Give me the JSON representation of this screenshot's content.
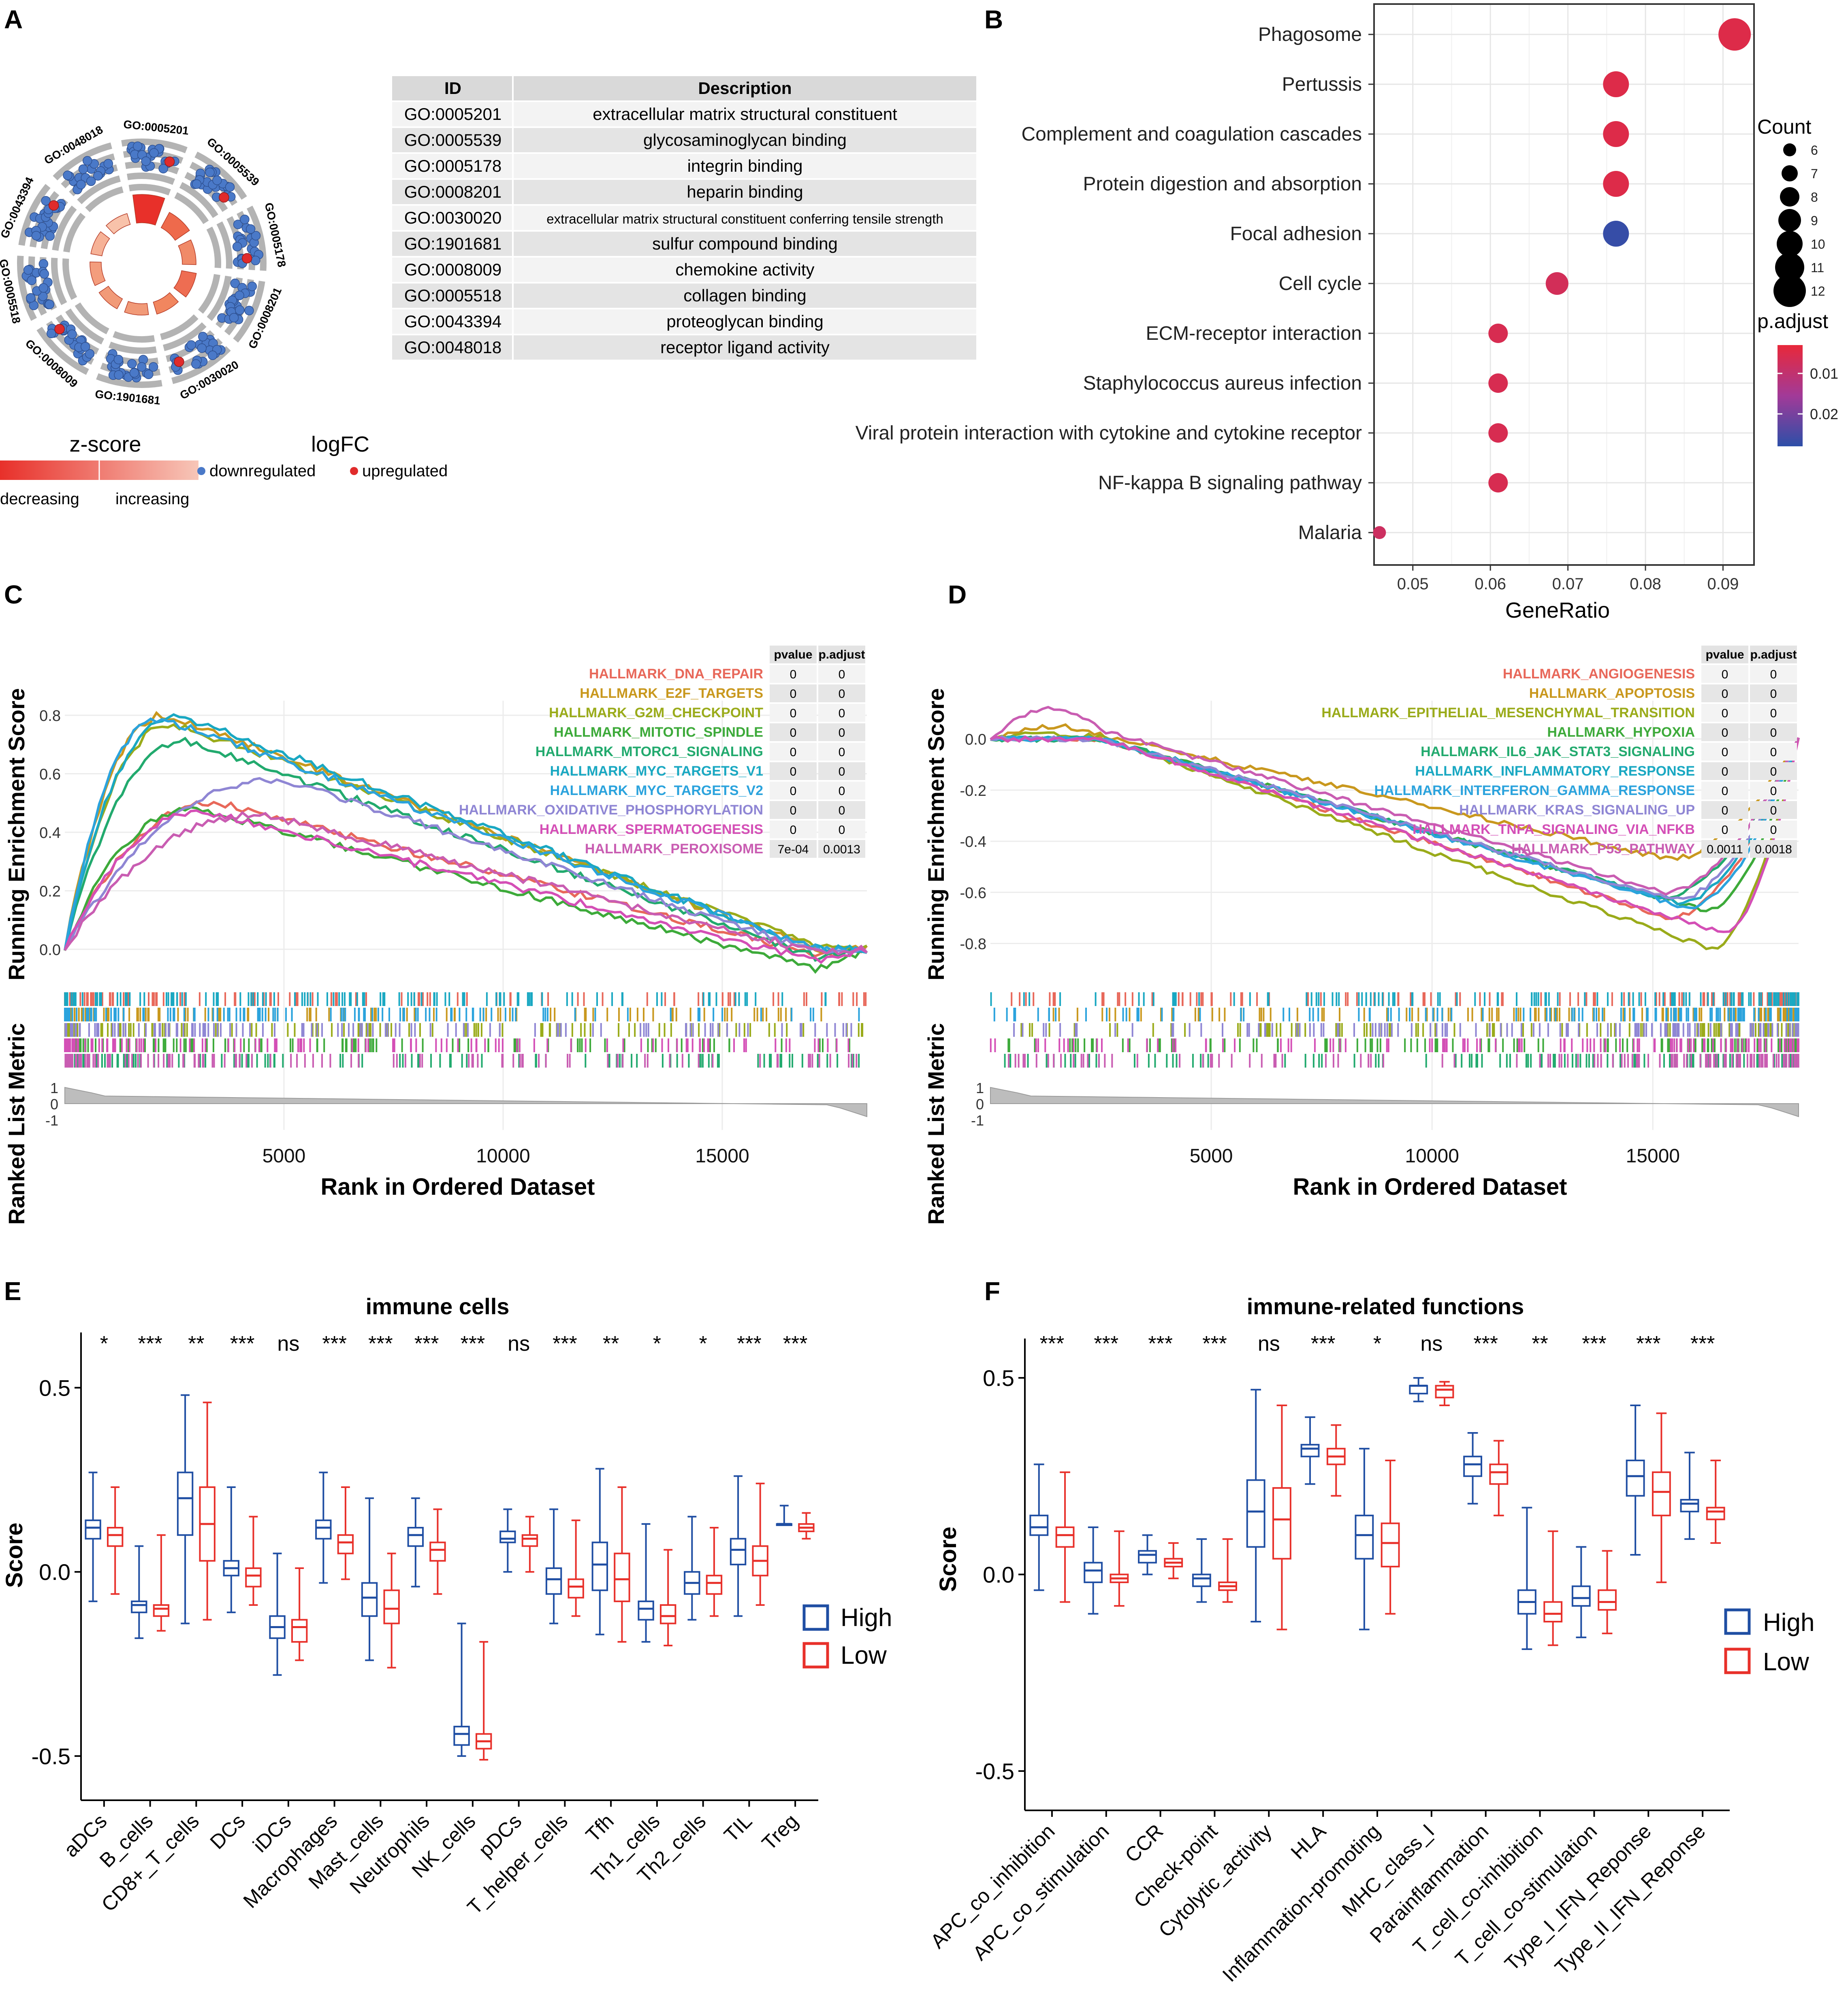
{
  "panels": {
    "a": "A",
    "b": "B",
    "c": "C",
    "d": "D",
    "e": "E",
    "f": "F"
  },
  "colors": {
    "down": "#4a79c8",
    "up": "#e02b2b",
    "high": "#1f4ea3",
    "low": "#e8302a",
    "bar": "#e8553a",
    "ring": "#b3b3b3"
  },
  "chart_data": [
    {
      "id": "A",
      "type": "table",
      "title": "GO circle plot",
      "headers": [
        "ID",
        "Description"
      ],
      "rows": [
        [
          "GO:0005201",
          "extracellular matrix structural constituent"
        ],
        [
          "GO:0005539",
          "glycosaminoglycan binding"
        ],
        [
          "GO:0005178",
          "integrin binding"
        ],
        [
          "GO:0008201",
          "heparin binding"
        ],
        [
          "GO:0030020",
          "extracellular matrix structural constituent conferring tensile strength"
        ],
        [
          "GO:1901681",
          "sulfur compound binding"
        ],
        [
          "GO:0008009",
          "chemokine activity"
        ],
        [
          "GO:0005518",
          "collagen binding"
        ],
        [
          "GO:0043394",
          "proteoglycan binding"
        ],
        [
          "GO:0048018",
          "receptor ligand activity"
        ]
      ],
      "circle_terms": [
        "GO:0005201",
        "GO:0005539",
        "GO:0005178",
        "GO:0008201",
        "GO:0030020",
        "GO:1901681",
        "GO:0008009",
        "GO:0005518",
        "GO:0043394",
        "GO:0048018"
      ],
      "bar_heights": [
        1.0,
        0.55,
        0.4,
        0.45,
        0.35,
        0.3,
        0.3,
        0.3,
        0.3,
        0.3
      ],
      "zscore_legend": {
        "title": "z-score",
        "low": "decreasing",
        "high": "increasing"
      },
      "logfc_legend": {
        "title": "logFC",
        "down": "downregulated",
        "up": "upregulated"
      }
    },
    {
      "id": "B",
      "type": "scatter",
      "xlabel": "GeneRatio",
      "xlim": [
        0.045,
        0.094
      ],
      "xticks": [
        0.05,
        0.06,
        0.07,
        0.08,
        0.09
      ],
      "tick_labels": [
        "0.05",
        "0.06",
        "0.07",
        "0.08",
        "0.09"
      ],
      "terms": [
        "Phagosome",
        "Pertussis",
        "Complement and coagulation cascades",
        "Protein digestion and absorption",
        "Focal adhesion",
        "Cell cycle",
        "ECM-receptor interaction",
        "Staphylococcus aureus infection",
        "Viral protein interaction with cytokine and cytokine receptor",
        "NF-kappa B signaling pathway",
        "Malaria"
      ],
      "gene_ratio": [
        0.0915,
        0.0762,
        0.0762,
        0.0762,
        0.0762,
        0.0686,
        0.061,
        0.061,
        0.061,
        0.061,
        0.0457
      ],
      "count": [
        12,
        10,
        10,
        10,
        10,
        9,
        8,
        8,
        8,
        8,
        6
      ],
      "p_adjust": [
        0.005,
        0.005,
        0.005,
        0.005,
        0.027,
        0.007,
        0.006,
        0.006,
        0.006,
        0.006,
        0.008
      ],
      "count_legend": {
        "title": "Count",
        "values": [
          "6",
          "7",
          "8",
          "9",
          "10",
          "11",
          "12"
        ]
      },
      "color_legend": {
        "title": "p.adjust",
        "ticks": [
          "0.01",
          "0.02"
        ],
        "tick_values": [
          0.01,
          0.02
        ],
        "range": [
          0.003,
          0.028
        ]
      }
    },
    {
      "id": "C",
      "type": "line",
      "ylabel_top": "Running Enrichment Score",
      "ylabel_bottom": "Ranked List Metric",
      "xlabel": "Rank in Ordered Dataset",
      "xlim": [
        0,
        18300
      ],
      "ylim": [
        -0.05,
        0.85
      ],
      "xticks": [
        "5000",
        "10000",
        "15000"
      ],
      "xtick_values": [
        5000,
        10000,
        15000
      ],
      "yticks": [
        "0.0",
        "0.2",
        "0.4",
        "0.6",
        "0.8"
      ],
      "ytick_values": [
        0,
        0.2,
        0.4,
        0.6,
        0.8
      ],
      "metric_ticks": [
        "1",
        "0",
        "-1"
      ],
      "table_headers": [
        "pvalue",
        "p.adjust"
      ],
      "series": [
        {
          "name": "HALLMARK_DNA_REPAIR",
          "color": "#e8685a",
          "pvalue": "0",
          "padjust": "0",
          "peak_rank": 3500,
          "peak": 0.5,
          "end_dip": -0.02
        },
        {
          "name": "HALLMARK_E2F_TARGETS",
          "color": "#c9981e",
          "pvalue": "0",
          "padjust": "0",
          "peak_rank": 2300,
          "peak": 0.8,
          "end_dip": 0.0
        },
        {
          "name": "HALLMARK_G2M_CHECKPOINT",
          "color": "#9aab1a",
          "pvalue": "0",
          "padjust": "0",
          "peak_rank": 2500,
          "peak": 0.77,
          "end_dip": 0.01
        },
        {
          "name": "HALLMARK_MITOTIC_SPINDLE",
          "color": "#3daa3a",
          "pvalue": "0",
          "padjust": "0",
          "peak_rank": 3000,
          "peak": 0.48,
          "end_dip": -0.07
        },
        {
          "name": "HALLMARK_MTORC1_SIGNALING",
          "color": "#22aa6e",
          "pvalue": "0",
          "padjust": "0",
          "peak_rank": 2800,
          "peak": 0.71,
          "end_dip": -0.03
        },
        {
          "name": "HALLMARK_MYC_TARGETS_V1",
          "color": "#1aa8c2",
          "pvalue": "0",
          "padjust": "0",
          "peak_rank": 2600,
          "peak": 0.8,
          "end_dip": 0.0
        },
        {
          "name": "HALLMARK_MYC_TARGETS_V2",
          "color": "#2ba3dd",
          "pvalue": "0",
          "padjust": "0",
          "peak_rank": 2200,
          "peak": 0.79,
          "end_dip": 0.0
        },
        {
          "name": "HALLMARK_OXIDATIVE_PHOSPHORYLATION",
          "color": "#8f86d4",
          "pvalue": "0",
          "padjust": "0",
          "peak_rank": 5000,
          "peak": 0.58,
          "end_dip": -0.01
        },
        {
          "name": "HALLMARK_SPERMATOGENESIS",
          "color": "#d44fb6",
          "pvalue": "0",
          "padjust": "0",
          "peak_rank": 3200,
          "peak": 0.47,
          "end_dip": -0.04
        },
        {
          "name": "HALLMARK_PEROXISOME",
          "color": "#c95db2",
          "pvalue": "7e-04",
          "padjust": "0.0013",
          "peak_rank": 4500,
          "peak": 0.46,
          "end_dip": -0.01
        }
      ]
    },
    {
      "id": "D",
      "type": "line",
      "ylabel_top": "Running Enrichment Score",
      "ylabel_bottom": "Ranked List Metric",
      "xlabel": "Rank in Ordered Dataset",
      "xlim": [
        0,
        18300
      ],
      "ylim": [
        -0.88,
        0.15
      ],
      "xticks": [
        "5000",
        "10000",
        "15000"
      ],
      "xtick_values": [
        5000,
        10000,
        15000
      ],
      "yticks": [
        "0.0",
        "-0.2",
        "-0.4",
        "-0.6",
        "-0.8"
      ],
      "ytick_values": [
        0,
        -0.2,
        -0.4,
        -0.6,
        -0.8
      ],
      "metric_ticks": [
        "1",
        "0",
        "-1"
      ],
      "table_headers": [
        "pvalue",
        "p.adjust"
      ],
      "series": [
        {
          "name": "HALLMARK_ANGIOGENESIS",
          "color": "#e8685a",
          "pvalue": "0",
          "padjust": "0",
          "trough_rank": 15400,
          "trough": -0.7,
          "start_bump": 0.0
        },
        {
          "name": "HALLMARK_APOPTOSIS",
          "color": "#c9981e",
          "pvalue": "0",
          "padjust": "0",
          "trough_rank": 15400,
          "trough": -0.47,
          "start_bump": 0.05
        },
        {
          "name": "HALLMARK_EPITHELIAL_MESENCHYMAL_TRANSITION",
          "color": "#9aab1a",
          "pvalue": "0",
          "padjust": "0",
          "trough_rank": 16300,
          "trough": -0.82,
          "start_bump": 0.02
        },
        {
          "name": "HALLMARK_HYPOXIA",
          "color": "#3daa3a",
          "pvalue": "0",
          "padjust": "0",
          "trough_rank": 16200,
          "trough": -0.67,
          "start_bump": 0.0
        },
        {
          "name": "HALLMARK_IL6_JAK_STAT3_SIGNALING",
          "color": "#22aa6e",
          "pvalue": "0",
          "padjust": "0",
          "trough_rank": 15200,
          "trough": -0.62,
          "start_bump": 0.0
        },
        {
          "name": "HALLMARK_INFLAMMATORY_RESPONSE",
          "color": "#1aa8c2",
          "pvalue": "0",
          "padjust": "0",
          "trough_rank": 15600,
          "trough": -0.64,
          "start_bump": 0.0
        },
        {
          "name": "HALLMARK_INTERFERON_GAMMA_RESPONSE",
          "color": "#2ba3dd",
          "pvalue": "0",
          "padjust": "0",
          "trough_rank": 15800,
          "trough": -0.66,
          "start_bump": 0.0
        },
        {
          "name": "HALLMARK_KRAS_SIGNALING_UP",
          "color": "#8f86d4",
          "pvalue": "0",
          "padjust": "0",
          "trough_rank": 15500,
          "trough": -0.63,
          "start_bump": 0.0
        },
        {
          "name": "HALLMARK_TNFA_SIGNALING_VIA_NFKB",
          "color": "#d44fb6",
          "pvalue": "0",
          "padjust": "0",
          "trough_rank": 16600,
          "trough": -0.76,
          "start_bump": 0.0
        },
        {
          "name": "HALLMARK_P53_PATHWAY",
          "color": "#c95db2",
          "pvalue": "0.0011",
          "padjust": "0.0018",
          "trough_rank": 15300,
          "trough": -0.6,
          "start_bump": 0.12
        }
      ]
    },
    {
      "id": "E",
      "type": "box",
      "title": "immune cells",
      "ylabel": "Score",
      "ylim": [
        -0.62,
        0.65
      ],
      "yticks": [
        "0.5",
        "0.0",
        "-0.5"
      ],
      "ytick_values": [
        0.5,
        0,
        -0.5
      ],
      "legend": [
        "High",
        "Low"
      ],
      "categories": [
        "aDCs",
        "B_cells",
        "CD8+_T_cells",
        "DCs",
        "iDCs",
        "Macrophages",
        "Mast_cells",
        "Neutrophils",
        "NK_cells",
        "pDCs",
        "T_helper_cells",
        "Tfh",
        "Th1_cells",
        "Th2_cells",
        "TIL",
        "Treg"
      ],
      "significance": [
        "*",
        "***",
        "**",
        "***",
        "ns",
        "***",
        "***",
        "***",
        "***",
        "ns",
        "***",
        "**",
        "*",
        "*",
        "***",
        "***"
      ],
      "high": [
        [
          -0.08,
          0.09,
          0.12,
          0.14,
          0.27
        ],
        [
          -0.18,
          -0.11,
          -0.09,
          -0.08,
          0.07
        ],
        [
          -0.14,
          0.1,
          0.2,
          0.27,
          0.48
        ],
        [
          -0.11,
          -0.01,
          0.01,
          0.03,
          0.23
        ],
        [
          -0.28,
          -0.18,
          -0.15,
          -0.12,
          0.05
        ],
        [
          -0.03,
          0.09,
          0.12,
          0.14,
          0.27
        ],
        [
          -0.24,
          -0.12,
          -0.07,
          -0.03,
          0.2
        ],
        [
          -0.04,
          0.07,
          0.1,
          0.12,
          0.2
        ],
        [
          -0.5,
          -0.47,
          -0.44,
          -0.42,
          -0.14
        ],
        [
          0.0,
          0.08,
          0.09,
          0.11,
          0.17
        ],
        [
          -0.14,
          -0.06,
          -0.02,
          0.01,
          0.17
        ],
        [
          -0.17,
          -0.05,
          0.02,
          0.08,
          0.28
        ],
        [
          -0.19,
          -0.13,
          -0.1,
          -0.08,
          0.13
        ],
        [
          -0.13,
          -0.06,
          -0.03,
          0.0,
          0.15
        ],
        [
          -0.12,
          0.02,
          0.06,
          0.09,
          0.26
        ],
        [
          0.13,
          0.13,
          0.13,
          0.13,
          0.18
        ]
      ],
      "low": [
        [
          -0.06,
          0.07,
          0.1,
          0.12,
          0.23
        ],
        [
          -0.16,
          -0.12,
          -0.1,
          -0.09,
          0.1
        ],
        [
          -0.13,
          0.03,
          0.13,
          0.23,
          0.46
        ],
        [
          -0.09,
          -0.04,
          -0.01,
          0.01,
          0.15
        ],
        [
          -0.24,
          -0.19,
          -0.15,
          -0.13,
          0.01
        ],
        [
          -0.02,
          0.05,
          0.08,
          0.1,
          0.23
        ],
        [
          -0.26,
          -0.14,
          -0.1,
          -0.05,
          0.05
        ],
        [
          -0.06,
          0.03,
          0.06,
          0.08,
          0.17
        ],
        [
          -0.51,
          -0.48,
          -0.46,
          -0.44,
          -0.19
        ],
        [
          0.0,
          0.07,
          0.09,
          0.1,
          0.15
        ],
        [
          -0.12,
          -0.07,
          -0.04,
          -0.02,
          0.14
        ],
        [
          -0.19,
          -0.08,
          -0.02,
          0.05,
          0.23
        ],
        [
          -0.2,
          -0.14,
          -0.12,
          -0.09,
          0.06
        ],
        [
          -0.12,
          -0.06,
          -0.03,
          -0.01,
          0.12
        ],
        [
          -0.09,
          -0.01,
          0.03,
          0.07,
          0.24
        ],
        [
          0.09,
          0.11,
          0.12,
          0.13,
          0.16
        ]
      ]
    },
    {
      "id": "F",
      "type": "box",
      "title": "immune-related functions",
      "ylabel": "Score",
      "ylim": [
        -0.6,
        0.6
      ],
      "yticks": [
        "0.5",
        "0.0",
        "-0.5"
      ],
      "ytick_values": [
        0.5,
        0,
        -0.5
      ],
      "legend": [
        "High",
        "Low"
      ],
      "categories": [
        "APC_co_inhibition",
        "APC_co_stimulation",
        "CCR",
        "Check-point",
        "Cytolytic_activity",
        "HLA",
        "Inflammation-promoting",
        "MHC_class_I",
        "Parainflammation",
        "T_cell_co-inhibition",
        "T_cell_co-stimulation",
        "Type_I_IFN_Reponse",
        "Type_II_IFN_Reponse"
      ],
      "significance": [
        "***",
        "***",
        "***",
        "***",
        "ns",
        "***",
        "*",
        "ns",
        "***",
        "**",
        "***",
        "***",
        "***"
      ],
      "high": [
        [
          -0.04,
          0.1,
          0.12,
          0.15,
          0.28
        ],
        [
          -0.1,
          -0.02,
          0.01,
          0.03,
          0.12
        ],
        [
          0.0,
          0.03,
          0.05,
          0.06,
          0.1
        ],
        [
          -0.07,
          -0.03,
          -0.01,
          0.0,
          0.09
        ],
        [
          -0.12,
          0.07,
          0.16,
          0.24,
          0.47
        ],
        [
          0.23,
          0.3,
          0.32,
          0.33,
          0.4
        ],
        [
          -0.14,
          0.04,
          0.1,
          0.15,
          0.32
        ],
        [
          0.44,
          0.46,
          0.48,
          0.48,
          0.5
        ],
        [
          0.18,
          0.25,
          0.28,
          0.3,
          0.36
        ],
        [
          -0.19,
          -0.1,
          -0.07,
          -0.04,
          0.17
        ],
        [
          -0.16,
          -0.08,
          -0.06,
          -0.03,
          0.07
        ],
        [
          0.05,
          0.2,
          0.25,
          0.29,
          0.43
        ],
        [
          0.09,
          0.16,
          0.18,
          0.19,
          0.31
        ]
      ],
      "low": [
        [
          -0.07,
          0.07,
          0.1,
          0.12,
          0.26
        ],
        [
          -0.08,
          -0.02,
          -0.01,
          0.0,
          0.11
        ],
        [
          -0.01,
          0.02,
          0.03,
          0.04,
          0.08
        ],
        [
          -0.07,
          -0.04,
          -0.03,
          -0.02,
          0.09
        ],
        [
          -0.14,
          0.04,
          0.14,
          0.22,
          0.43
        ],
        [
          0.2,
          0.28,
          0.3,
          0.32,
          0.38
        ],
        [
          -0.1,
          0.02,
          0.08,
          0.13,
          0.29
        ],
        [
          0.43,
          0.45,
          0.47,
          0.48,
          0.49
        ],
        [
          0.15,
          0.23,
          0.26,
          0.28,
          0.34
        ],
        [
          -0.18,
          -0.12,
          -0.1,
          -0.07,
          0.11
        ],
        [
          -0.15,
          -0.09,
          -0.07,
          -0.04,
          0.06
        ],
        [
          -0.02,
          0.15,
          0.21,
          0.26,
          0.41
        ],
        [
          0.08,
          0.14,
          0.16,
          0.17,
          0.29
        ]
      ]
    }
  ]
}
